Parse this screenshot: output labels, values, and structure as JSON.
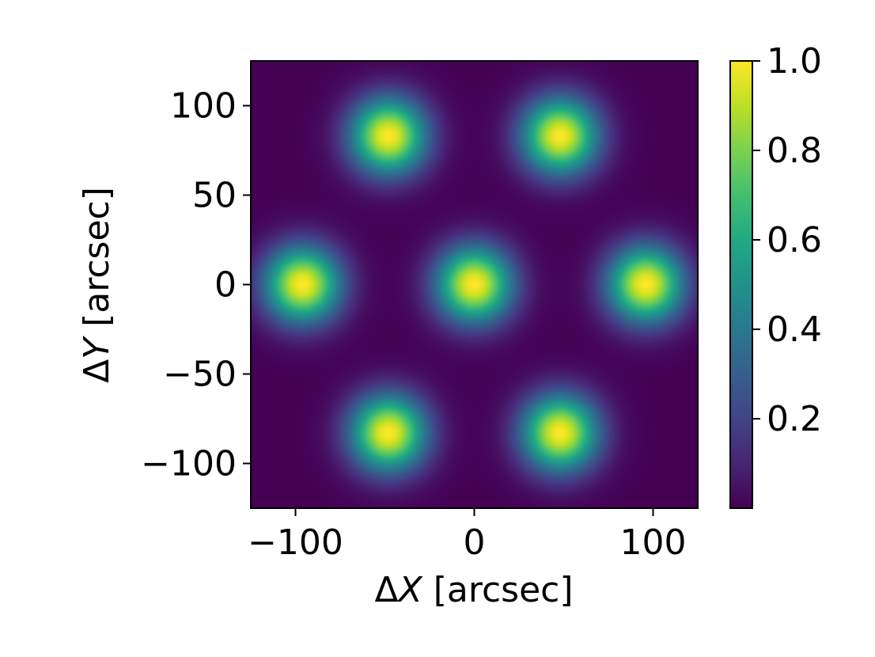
{
  "chart_data": {
    "type": "heatmap",
    "title": "",
    "xlabel": {
      "prefix": "Δ",
      "var": "X",
      "suffix": " [arcsec]"
    },
    "ylabel": {
      "prefix": "Δ",
      "var": "Y",
      "suffix": " [arcsec]"
    },
    "xlim": [
      -125,
      125
    ],
    "ylim": [
      -125,
      125
    ],
    "x_ticks": [
      {
        "value": -100,
        "label": "−100"
      },
      {
        "value": 0,
        "label": "0"
      },
      {
        "value": 100,
        "label": "100"
      }
    ],
    "y_ticks": [
      {
        "value": 100,
        "label": "100"
      },
      {
        "value": 50,
        "label": "50"
      },
      {
        "value": 0,
        "label": "0"
      },
      {
        "value": -50,
        "label": "−50"
      },
      {
        "value": -100,
        "label": "−100"
      }
    ],
    "peaks": [
      {
        "x": -48,
        "y": 83,
        "value": 1.0
      },
      {
        "x": 48,
        "y": 83,
        "value": 1.0
      },
      {
        "x": -96,
        "y": 0,
        "value": 1.0
      },
      {
        "x": 0,
        "y": 0,
        "value": 1.0
      },
      {
        "x": 96,
        "y": 0,
        "value": 1.0
      },
      {
        "x": -48,
        "y": -83,
        "value": 1.0
      },
      {
        "x": 48,
        "y": -83,
        "value": 1.0
      }
    ],
    "peak_fwhm_arcsec": 35,
    "colormap": "viridis",
    "colorbar": {
      "range": [
        0.0,
        1.0
      ],
      "ticks": [
        {
          "value": 1.0,
          "label": "1.0"
        },
        {
          "value": 0.8,
          "label": "0.8"
        },
        {
          "value": 0.6,
          "label": "0.6"
        },
        {
          "value": 0.4,
          "label": "0.4"
        },
        {
          "value": 0.2,
          "label": "0.2"
        }
      ]
    },
    "grid": false,
    "colors": {
      "background_low": "#440154",
      "peak_high": "#fde725"
    }
  }
}
